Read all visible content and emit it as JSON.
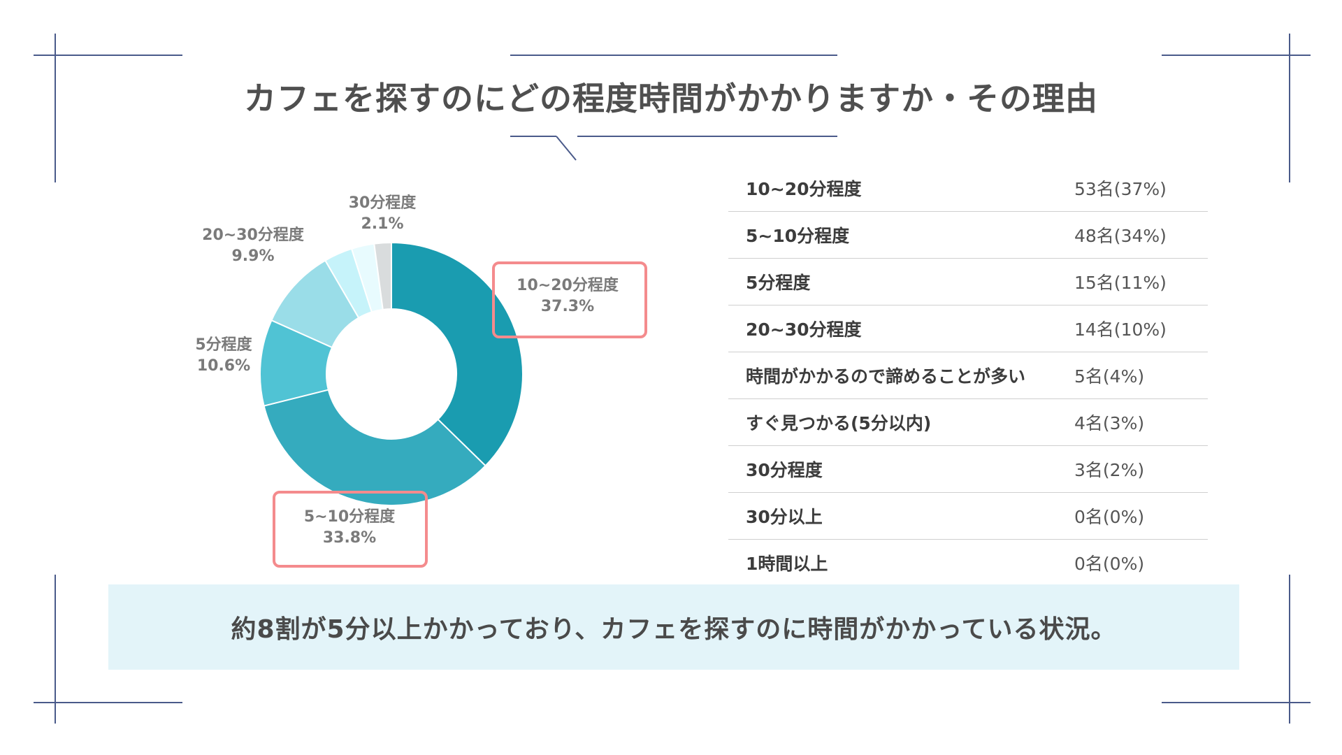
{
  "title": "カフェを探すのにどの程度時間がかかりますか・その理由",
  "chart_data": {
    "type": "pie",
    "donut": true,
    "slices": [
      {
        "label": "10~20分程度",
        "value": 37.3,
        "value_text": "37.3%",
        "color": "#1a9cb0",
        "highlight": true
      },
      {
        "label": "5~10分程度",
        "value": 33.8,
        "value_text": "33.8%",
        "color": "#35abbe",
        "highlight": true
      },
      {
        "label": "5分程度",
        "value": 10.6,
        "value_text": "10.6%",
        "color": "#50c3d4",
        "highlight": false
      },
      {
        "label": "20~30分程度",
        "value": 9.9,
        "value_text": "9.9%",
        "color": "#9adde8",
        "highlight": false
      },
      {
        "label": "",
        "value": 3.5,
        "value_text": "",
        "color": "#c6f3fa",
        "highlight": false
      },
      {
        "label": "",
        "value": 2.8,
        "value_text": "",
        "color": "#e8fbfe",
        "highlight": false
      },
      {
        "label": "30分程度",
        "value": 2.1,
        "value_text": "2.1%",
        "color": "#d9dcdd",
        "highlight": false
      }
    ],
    "highlight_color": "#f48b8d"
  },
  "table": {
    "rows": [
      {
        "label": "10~20分程度",
        "value": "53名(37%)"
      },
      {
        "label": "5~10分程度",
        "value": "48名(34%)"
      },
      {
        "label": "5分程度",
        "value": "15名(11%)"
      },
      {
        "label": "20~30分程度",
        "value": "14名(10%)"
      },
      {
        "label": "時間がかかるので諦めることが多い",
        "value": "5名(4%)"
      },
      {
        "label": "すぐ見つかる(5分以内)",
        "value": "4名(3%)"
      },
      {
        "label": "30分程度",
        "value": "3名(2%)"
      },
      {
        "label": "30分以上",
        "value": "0名(0%)"
      },
      {
        "label": "1時間以上",
        "value": "0名(0%)"
      }
    ]
  },
  "banner": {
    "text": "約8割が5分以上かかっており、カフェを探すのに時間がかかっている状況。"
  },
  "frame_color": "#4a5a8a"
}
